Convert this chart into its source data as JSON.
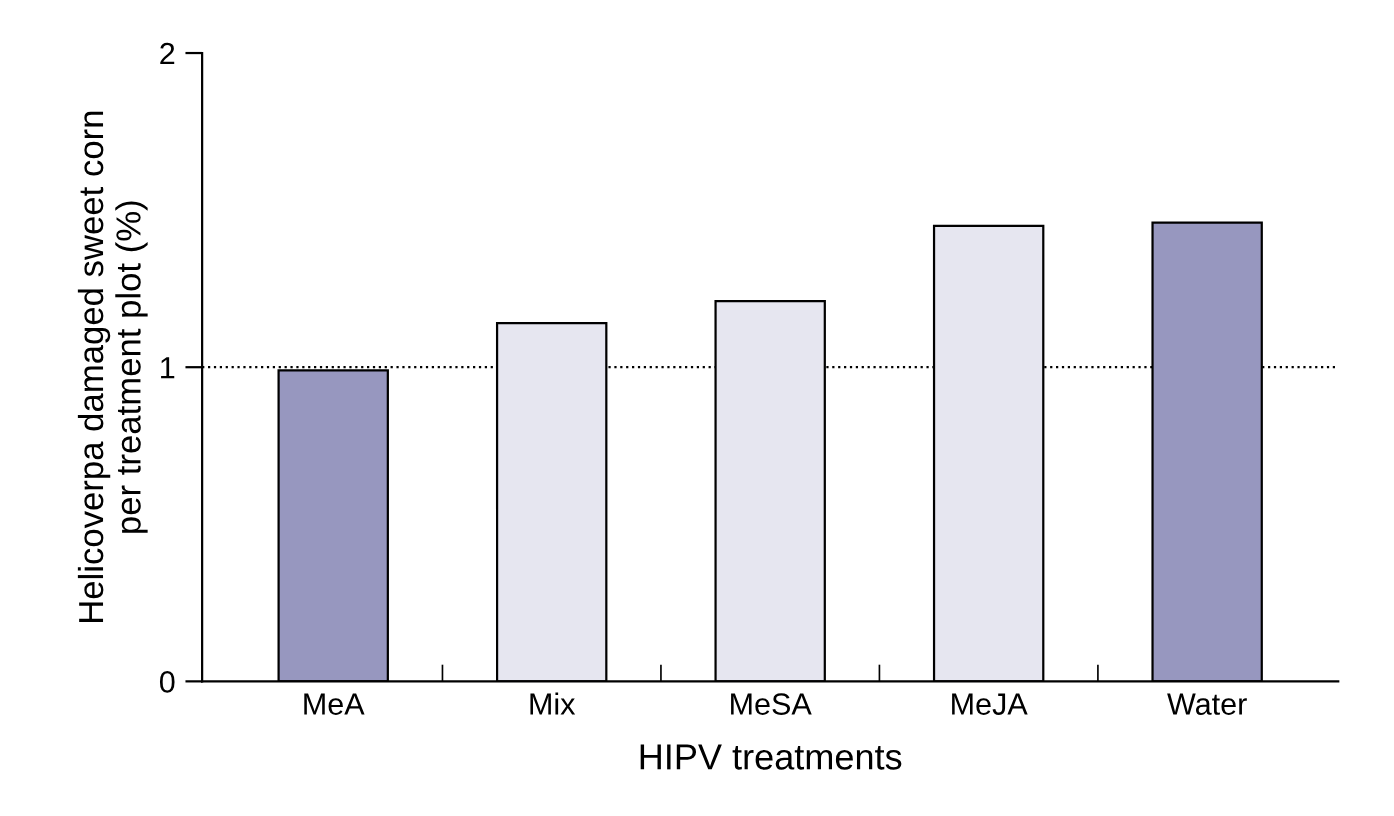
{
  "chart_data": {
    "type": "bar",
    "xlabel": "HIPV treatments",
    "ylabel": "Helicoverpa damaged sweet corn\nper treatment plot (%)",
    "categories": [
      "MeA",
      "Mix",
      "MeSA",
      "MeJA",
      "Water"
    ],
    "values": [
      0.99,
      1.14,
      1.21,
      1.45,
      1.46
    ],
    "colors": [
      "#9797bf",
      "#e6e6f0",
      "#e6e6f0",
      "#e6e6f0",
      "#9797bf"
    ],
    "ylim": [
      0,
      2
    ],
    "yticks": [
      0,
      1,
      2
    ],
    "grid": false,
    "ref_lines": [
      {
        "axis": "y",
        "value": 1,
        "line_style": "dotted",
        "color": "#000000"
      }
    ]
  }
}
